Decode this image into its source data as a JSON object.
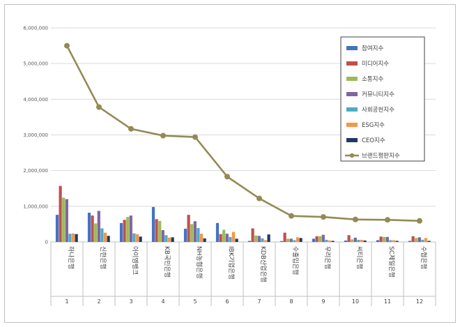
{
  "chart_data": {
    "type": "bar+line",
    "title": "",
    "xlabel": "",
    "ylabel": "",
    "ylim": [
      0,
      6000000
    ],
    "yticks": [
      "0",
      "1,000,000",
      "2,000,000",
      "3,000,000",
      "4,000,000",
      "5,000,000",
      "6,000,000"
    ],
    "grid": true,
    "legend_position": "top-right",
    "categories": [
      "하나은행",
      "신한은행",
      "아이엠뱅크",
      "KB국민은행",
      "NH농협은행",
      "IBK기업은행",
      "KDB산업은행",
      "수출입은행",
      "우리은행",
      "씨티은행",
      "SC제일은행",
      "수협은행"
    ],
    "ranks": [
      "1",
      "2",
      "3",
      "4",
      "5",
      "6",
      "7",
      "8",
      "9",
      "10",
      "11",
      "12"
    ],
    "series": [
      {
        "name": "참여지수",
        "color": "#4472C4",
        "values": [
          760000,
          820000,
          530000,
          980000,
          370000,
          530000,
          30000,
          25000,
          90000,
          40000,
          50000,
          30000
        ]
      },
      {
        "name": "미디어지수",
        "color": "#C0504D",
        "values": [
          1570000,
          740000,
          620000,
          640000,
          760000,
          220000,
          380000,
          260000,
          160000,
          190000,
          150000,
          160000
        ]
      },
      {
        "name": "소통지수",
        "color": "#9BBB59",
        "values": [
          1240000,
          520000,
          700000,
          590000,
          500000,
          340000,
          180000,
          90000,
          160000,
          70000,
          140000,
          110000
        ]
      },
      {
        "name": "커뮤니티지수",
        "color": "#8064A2",
        "values": [
          1200000,
          870000,
          740000,
          330000,
          580000,
          230000,
          170000,
          90000,
          200000,
          120000,
          140000,
          130000
        ]
      },
      {
        "name": "사회공헌지수",
        "color": "#4BACC6",
        "values": [
          230000,
          380000,
          240000,
          190000,
          390000,
          140000,
          100000,
          50000,
          60000,
          60000,
          50000,
          60000
        ]
      },
      {
        "name": "ESG지수",
        "color": "#F79646",
        "values": [
          240000,
          260000,
          220000,
          120000,
          230000,
          280000,
          50000,
          130000,
          40000,
          60000,
          50000,
          110000
        ]
      },
      {
        "name": "CEO지수",
        "color": "#1F3864",
        "values": [
          220000,
          170000,
          150000,
          130000,
          100000,
          90000,
          210000,
          110000,
          30000,
          40000,
          30000,
          30000
        ]
      }
    ],
    "line": {
      "name": "브랜드평판지수",
      "color": "#948A54",
      "values": [
        5500000,
        3780000,
        3170000,
        2980000,
        2940000,
        1830000,
        1220000,
        730000,
        700000,
        630000,
        620000,
        590000
      ]
    }
  }
}
